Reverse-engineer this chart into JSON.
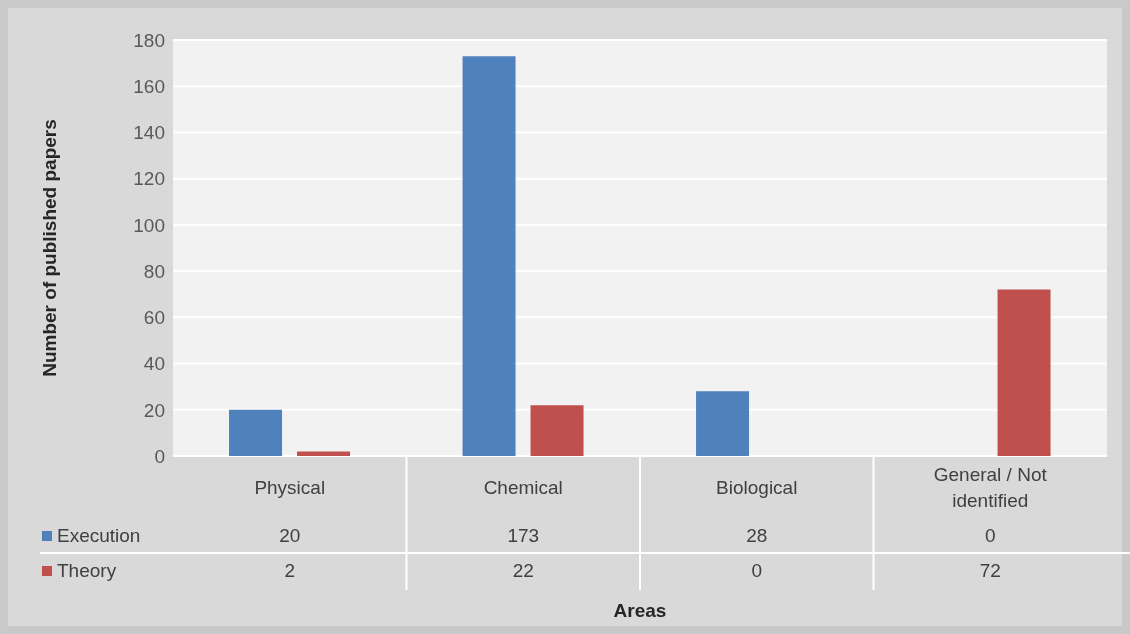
{
  "chart_data": {
    "type": "bar",
    "xlabel": "Areas",
    "ylabel": "Number of published papers",
    "categories": [
      "Physical",
      "Chemical",
      "Biological",
      "General / Not identified"
    ],
    "series": [
      {
        "name": "Execution",
        "color": "#4f81bd",
        "values": [
          20,
          173,
          28,
          0
        ]
      },
      {
        "name": "Theory",
        "color": "#c0504d",
        "values": [
          2,
          22,
          0,
          72
        ]
      }
    ],
    "ylim": [
      0,
      180
    ],
    "yticks": [
      0,
      20,
      40,
      60,
      80,
      100,
      120,
      140,
      160,
      180
    ],
    "grid": "y",
    "legend": "bottom",
    "data_labels": true
  }
}
